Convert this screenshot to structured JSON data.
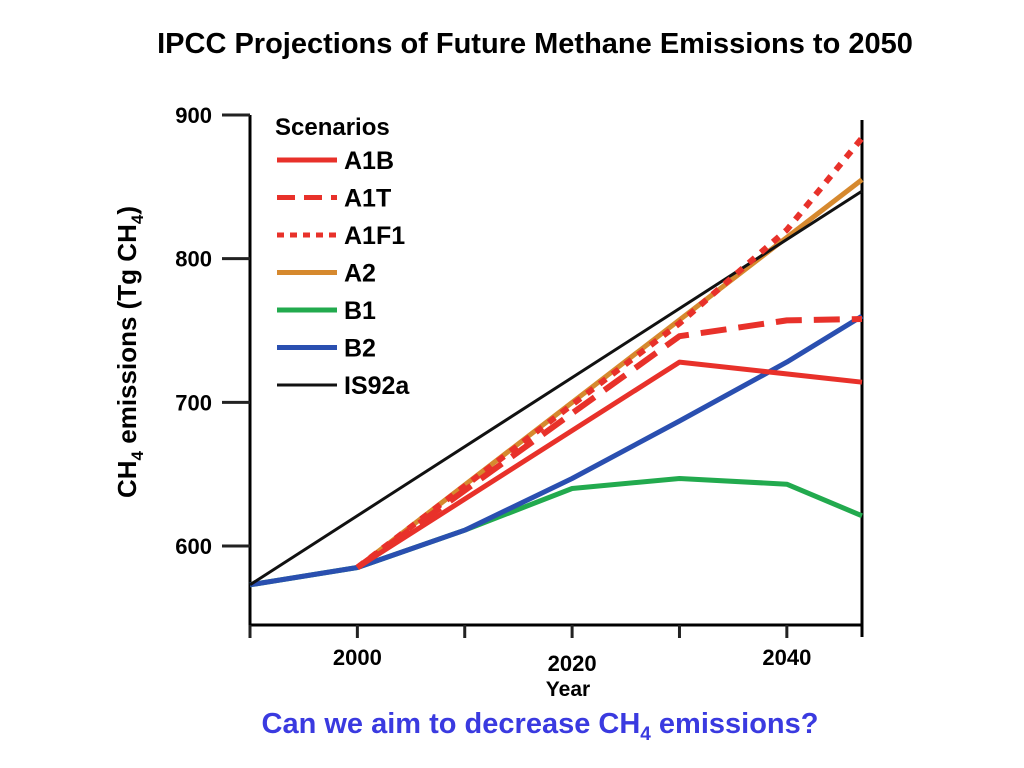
{
  "slide": {
    "title": "IPCC Projections of Future Methane Emissions to 2050",
    "question": {
      "prefix": "Can we aim to decrease CH",
      "subscript": "4",
      "suffix": " emissions?",
      "color": "#3a3ae0"
    }
  },
  "chart_data": {
    "type": "line",
    "title": "",
    "ylabel": {
      "prefix": "CH",
      "sub1": "4",
      "middle": " emissions (Tg CH",
      "sub2": "4",
      "suffix": ")"
    },
    "xlabel": "Year",
    "xlim": [
      1990,
      2047
    ],
    "ylim": [
      545,
      900
    ],
    "x_ticks": [
      1990,
      2000,
      2010,
      2020,
      2030,
      2040
    ],
    "x_tick_labels": [
      {
        "x": 2000,
        "label": "2000",
        "row": "upper"
      },
      {
        "x": 2020,
        "label": "2020",
        "row": "lower"
      },
      {
        "x": 2040,
        "label": "2040",
        "row": "upper"
      }
    ],
    "y_ticks": [
      600,
      700,
      800,
      900
    ],
    "y_tick_labels": [
      "600",
      "700",
      "800",
      "900"
    ],
    "legend": {
      "title": "Scenarios",
      "placement": "top-left inside plot"
    },
    "series": [
      {
        "name": "A1B",
        "color": "#e8312a",
        "style": "solid",
        "x": [
          2000,
          2030,
          2047
        ],
        "y": [
          585,
          728,
          714
        ]
      },
      {
        "name": "A1T",
        "color": "#e8312a",
        "style": "dashed",
        "x": [
          2000,
          2030,
          2040,
          2047
        ],
        "y": [
          585,
          746,
          757,
          758
        ]
      },
      {
        "name": "A1F1",
        "color": "#e8312a",
        "style": "dotted",
        "x": [
          2000,
          2030,
          2040,
          2047
        ],
        "y": [
          585,
          755,
          820,
          884
        ]
      },
      {
        "name": "A2",
        "color": "#d6892e",
        "style": "solid",
        "x": [
          2000,
          2047
        ],
        "y": [
          585,
          855
        ]
      },
      {
        "name": "B1",
        "color": "#22aa4e",
        "style": "solid",
        "x": [
          1990,
          2000,
          2010,
          2020,
          2030,
          2040,
          2047
        ],
        "y": [
          573,
          585,
          611,
          640,
          647,
          643,
          621
        ]
      },
      {
        "name": "B2",
        "color": "#2a4fb0",
        "style": "solid",
        "x": [
          1990,
          2000,
          2010,
          2020,
          2030,
          2040,
          2047
        ],
        "y": [
          573,
          585,
          611,
          647,
          687,
          728,
          760
        ]
      },
      {
        "name": "IS92a",
        "color": "#111111",
        "style": "solid",
        "x": [
          1990,
          2047
        ],
        "y": [
          573,
          847
        ]
      }
    ]
  }
}
